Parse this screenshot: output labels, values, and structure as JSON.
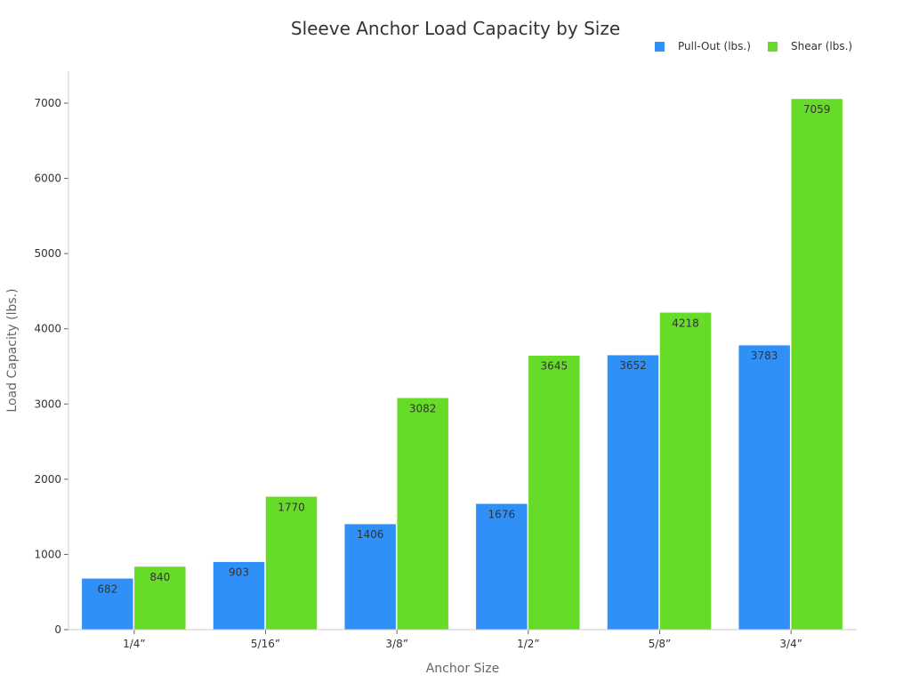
{
  "chart_data": {
    "type": "bar",
    "title": "Sleeve Anchor Load Capacity by Size",
    "xlabel": "Anchor Size",
    "ylabel": "Load Capacity (lbs.)",
    "categories": [
      "1/4”",
      "5/16”",
      "3/8”",
      "1/2”",
      "5/8”",
      "3/4”"
    ],
    "series": [
      {
        "name": "Pull-Out (lbs.)",
        "color": "#2f91f8",
        "values": [
          682,
          903,
          1406,
          1676,
          3652,
          3783
        ]
      },
      {
        "name": "Shear (lbs.)",
        "color": "#66db28",
        "values": [
          840,
          1770,
          3082,
          3645,
          4218,
          7059
        ]
      }
    ],
    "ylim": [
      0,
      7400
    ],
    "yticks": [
      0,
      1000,
      2000,
      3000,
      4000,
      5000,
      6000,
      7000
    ],
    "grid": false,
    "legend": "top-right",
    "data_labels": true
  }
}
